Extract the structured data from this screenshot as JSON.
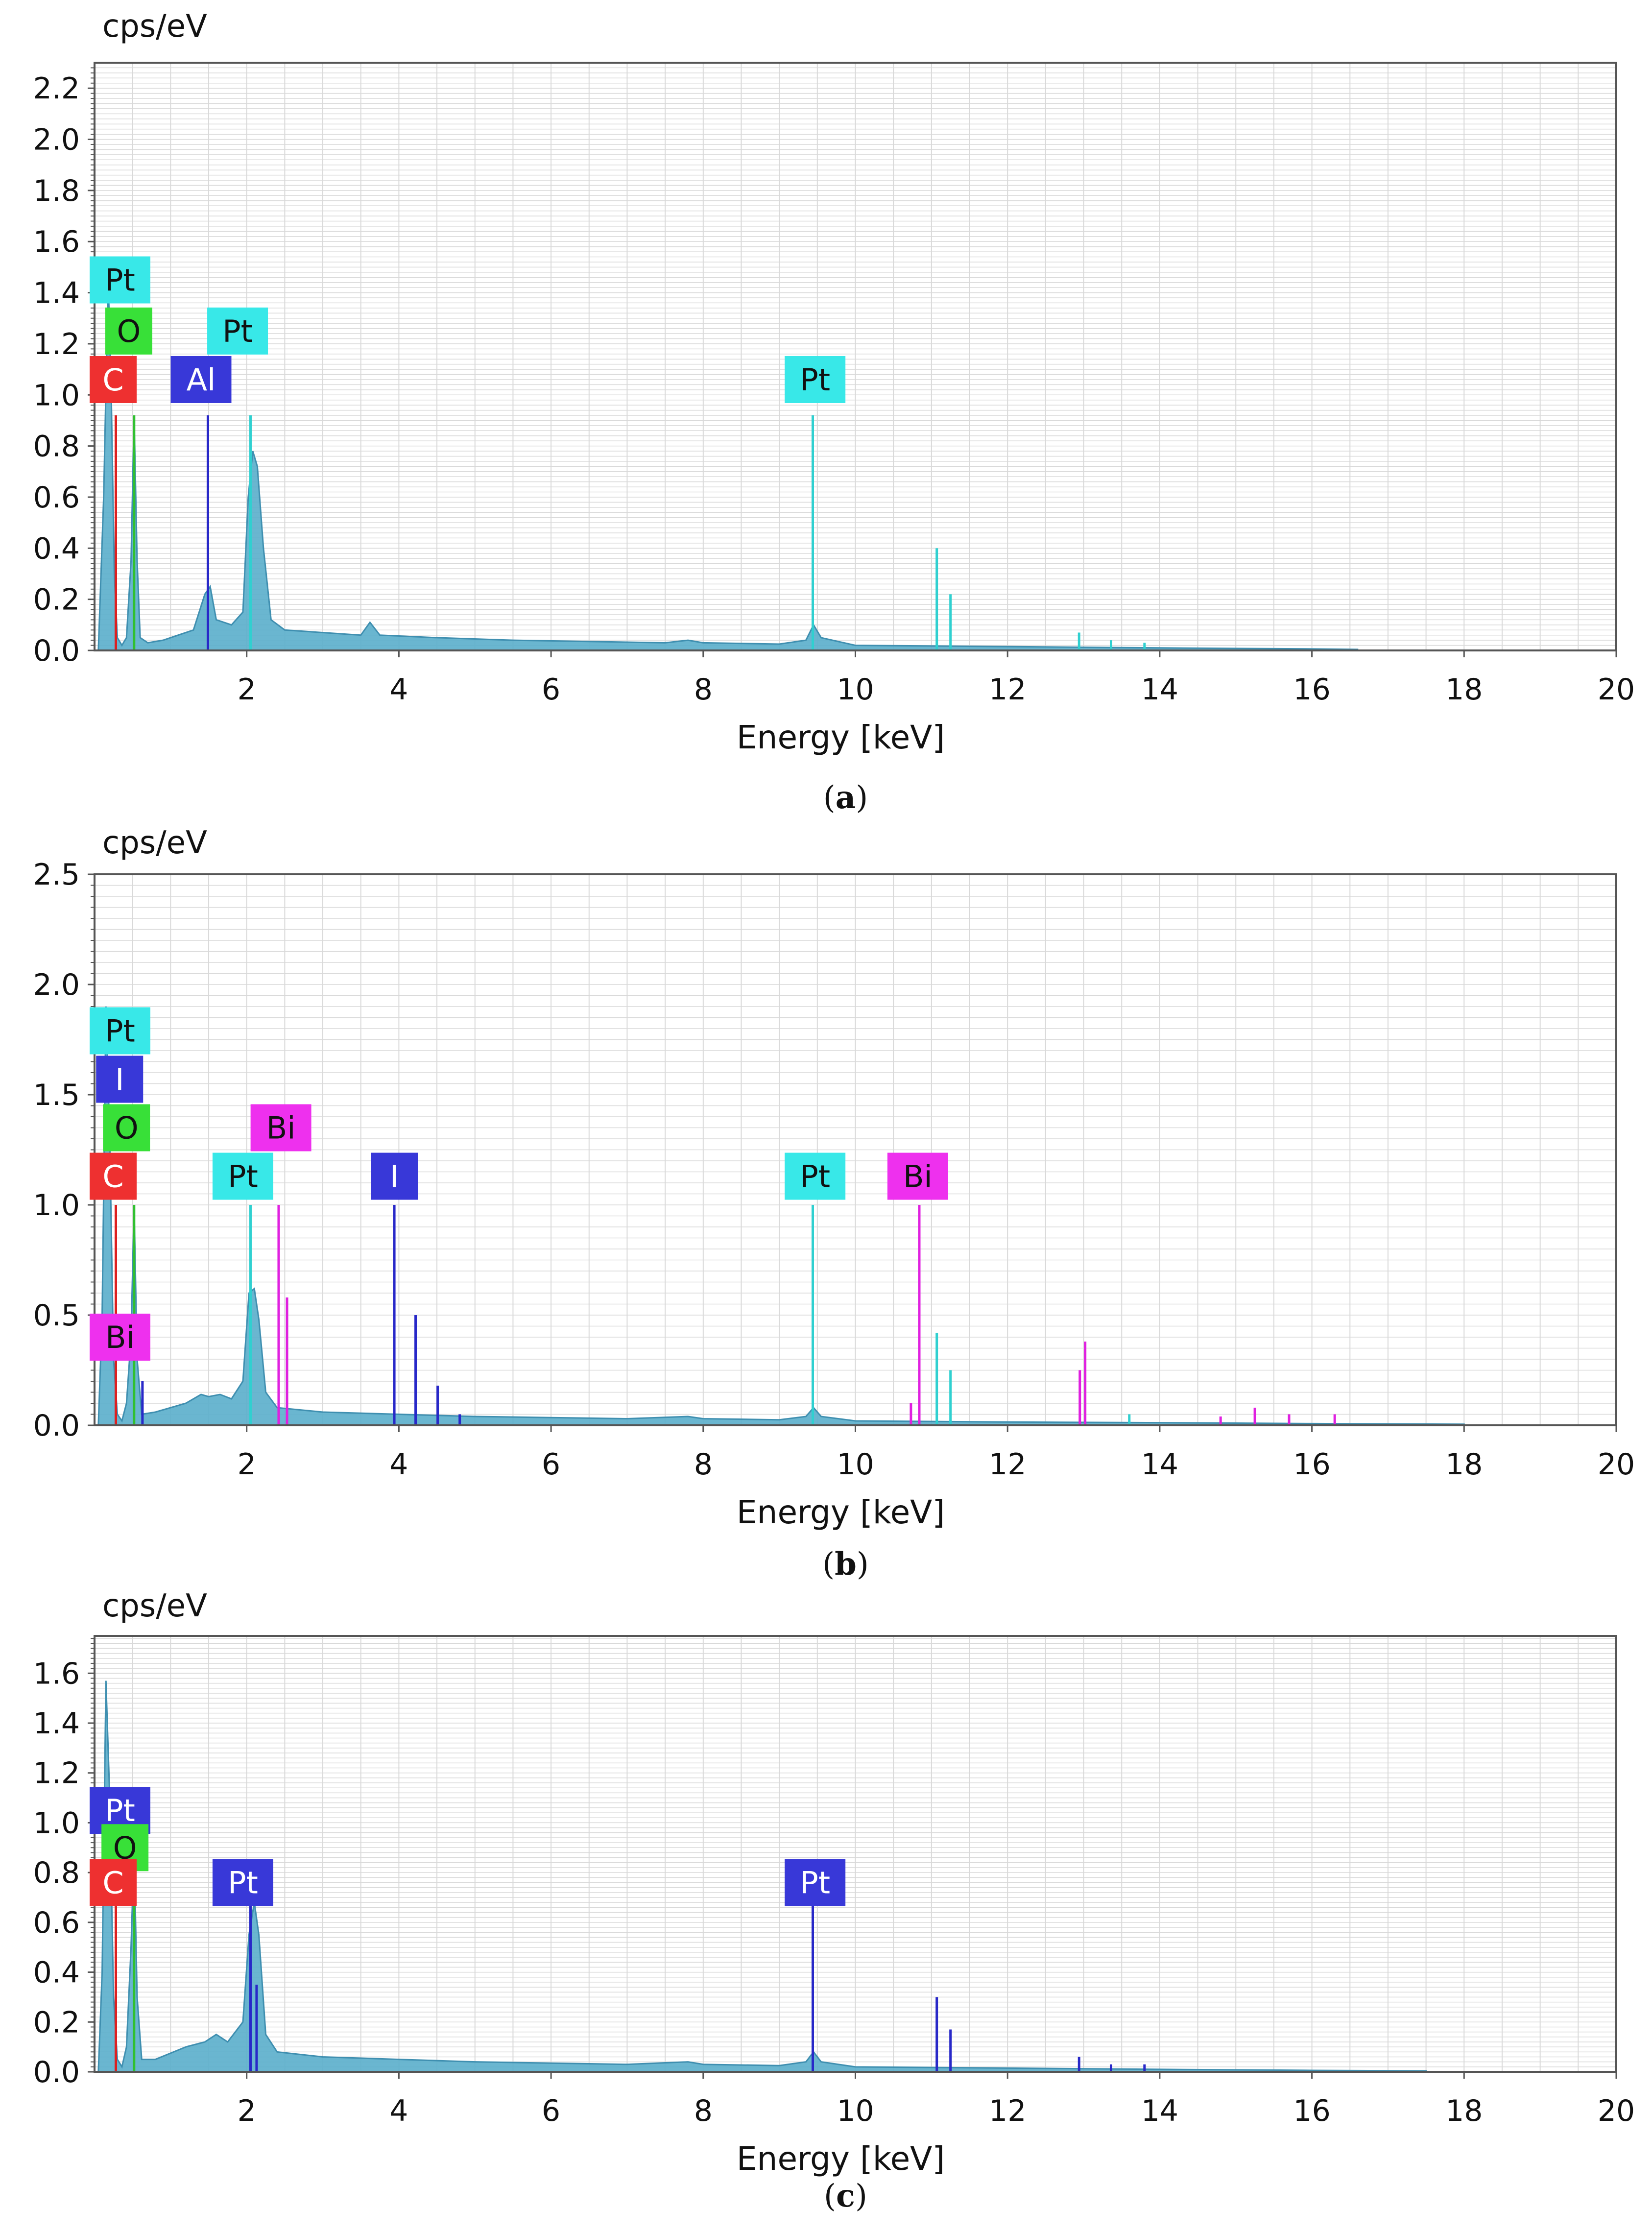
{
  "chart_data": [
    {
      "type": "line",
      "panel_caption": "a",
      "ylabel": "cps/eV",
      "xlabel": "Energy [keV]",
      "xlim": [
        0,
        20
      ],
      "ylim": [
        0,
        2.3
      ],
      "xticks": [
        2,
        4,
        6,
        8,
        10,
        12,
        14,
        16,
        18,
        20
      ],
      "yticks": [
        0.0,
        0.2,
        0.4,
        0.6,
        0.8,
        1.0,
        1.2,
        1.4,
        1.6,
        1.8,
        2.0,
        2.2
      ],
      "ytick_labels": [
        "0.0",
        "0.2",
        "0.4",
        "0.6",
        "0.8",
        "1.0",
        "1.2",
        "1.4",
        "1.6",
        "1.8",
        "2.0",
        "2.2"
      ],
      "grid": true,
      "spectrum": [
        [
          0.05,
          0.0
        ],
        [
          0.12,
          0.6
        ],
        [
          0.18,
          1.45
        ],
        [
          0.22,
          1.0
        ],
        [
          0.26,
          0.3
        ],
        [
          0.3,
          0.05
        ],
        [
          0.36,
          0.02
        ],
        [
          0.42,
          0.05
        ],
        [
          0.48,
          0.35
        ],
        [
          0.52,
          0.92
        ],
        [
          0.56,
          0.35
        ],
        [
          0.6,
          0.05
        ],
        [
          0.7,
          0.03
        ],
        [
          0.9,
          0.04
        ],
        [
          1.1,
          0.06
        ],
        [
          1.3,
          0.08
        ],
        [
          1.45,
          0.22
        ],
        [
          1.52,
          0.25
        ],
        [
          1.6,
          0.12
        ],
        [
          1.8,
          0.1
        ],
        [
          1.95,
          0.15
        ],
        [
          2.02,
          0.6
        ],
        [
          2.08,
          0.78
        ],
        [
          2.14,
          0.72
        ],
        [
          2.22,
          0.4
        ],
        [
          2.32,
          0.12
        ],
        [
          2.5,
          0.08
        ],
        [
          3.0,
          0.07
        ],
        [
          3.5,
          0.06
        ],
        [
          3.62,
          0.11
        ],
        [
          3.75,
          0.06
        ],
        [
          4.5,
          0.05
        ],
        [
          5.5,
          0.04
        ],
        [
          6.5,
          0.035
        ],
        [
          7.5,
          0.03
        ],
        [
          7.8,
          0.04
        ],
        [
          8.0,
          0.03
        ],
        [
          9.0,
          0.025
        ],
        [
          9.35,
          0.04
        ],
        [
          9.45,
          0.1
        ],
        [
          9.55,
          0.05
        ],
        [
          10.0,
          0.02
        ],
        [
          12.0,
          0.015
        ],
        [
          14.0,
          0.01
        ],
        [
          16.0,
          0.006
        ],
        [
          16.6,
          0.004
        ]
      ],
      "markers": [
        {
          "element": "Pt",
          "energy": 9.44,
          "height": 0.92,
          "color": "#30d0d0"
        },
        {
          "element": "Pt",
          "energy": 2.05,
          "height": 0.92,
          "color": "#30d0d0"
        },
        {
          "element": "Pt",
          "energy": 11.07,
          "height": 0.4,
          "color": "#30d0d0"
        },
        {
          "element": "Pt",
          "energy": 11.25,
          "height": 0.22,
          "color": "#30d0d0"
        },
        {
          "element": "Pt",
          "energy": 12.94,
          "height": 0.07,
          "color": "#30d0d0"
        },
        {
          "element": "Pt",
          "energy": 13.36,
          "height": 0.04,
          "color": "#30d0d0"
        },
        {
          "element": "Pt",
          "energy": 13.8,
          "height": 0.03,
          "color": "#30d0d0"
        },
        {
          "element": "Al",
          "energy": 1.49,
          "height": 0.92,
          "color": "#2828c8"
        },
        {
          "element": "O",
          "energy": 0.52,
          "height": 0.92,
          "color": "#30c030"
        },
        {
          "element": "C",
          "energy": 0.28,
          "height": 0.92,
          "color": "#dd2020"
        }
      ],
      "labels": [
        {
          "text": "Pt",
          "energy": 0.22,
          "y": 1.45,
          "bg": "#38e8e8",
          "fg": "#111111"
        },
        {
          "text": "O",
          "energy": 0.45,
          "y": 1.25,
          "bg": "#38e038",
          "fg": "#111111"
        },
        {
          "text": "Pt",
          "energy": 1.88,
          "y": 1.25,
          "bg": "#38e8e8",
          "fg": "#111111"
        },
        {
          "text": "C",
          "energy": 0.22,
          "y": 1.06,
          "bg": "#ee3030",
          "fg": "#ffffff"
        },
        {
          "text": "Al",
          "energy": 1.4,
          "y": 1.06,
          "bg": "#3838d8",
          "fg": "#ffffff"
        },
        {
          "text": "Pt",
          "energy": 9.47,
          "y": 1.06,
          "bg": "#38e8e8",
          "fg": "#111111"
        }
      ]
    },
    {
      "type": "line",
      "panel_caption": "b",
      "ylabel": "cps/eV",
      "xlabel": "Energy [keV]",
      "xlim": [
        0,
        20
      ],
      "ylim": [
        0,
        2.5
      ],
      "xticks": [
        2,
        4,
        6,
        8,
        10,
        12,
        14,
        16,
        18,
        20
      ],
      "yticks": [
        0.0,
        0.5,
        1.0,
        1.5,
        2.0,
        2.5
      ],
      "ytick_labels": [
        "0.0",
        "0.5",
        "1.0",
        "1.5",
        "2.0",
        "2.5"
      ],
      "grid": true,
      "spectrum": [
        [
          0.05,
          0.0
        ],
        [
          0.1,
          0.5
        ],
        [
          0.15,
          1.9
        ],
        [
          0.2,
          1.3
        ],
        [
          0.25,
          0.3
        ],
        [
          0.3,
          0.05
        ],
        [
          0.36,
          0.02
        ],
        [
          0.42,
          0.1
        ],
        [
          0.48,
          0.4
        ],
        [
          0.52,
          1.0
        ],
        [
          0.56,
          0.3
        ],
        [
          0.62,
          0.05
        ],
        [
          0.8,
          0.06
        ],
        [
          1.2,
          0.1
        ],
        [
          1.4,
          0.14
        ],
        [
          1.5,
          0.13
        ],
        [
          1.65,
          0.14
        ],
        [
          1.8,
          0.12
        ],
        [
          1.95,
          0.2
        ],
        [
          2.03,
          0.6
        ],
        [
          2.1,
          0.62
        ],
        [
          2.16,
          0.48
        ],
        [
          2.25,
          0.15
        ],
        [
          2.4,
          0.08
        ],
        [
          3.0,
          0.06
        ],
        [
          4.0,
          0.05
        ],
        [
          5.0,
          0.04
        ],
        [
          6.0,
          0.035
        ],
        [
          7.0,
          0.03
        ],
        [
          7.8,
          0.04
        ],
        [
          8.0,
          0.03
        ],
        [
          9.0,
          0.025
        ],
        [
          9.35,
          0.04
        ],
        [
          9.45,
          0.08
        ],
        [
          9.55,
          0.04
        ],
        [
          10.0,
          0.02
        ],
        [
          12.0,
          0.015
        ],
        [
          14.0,
          0.012
        ],
        [
          16.0,
          0.008
        ],
        [
          18.0,
          0.005
        ]
      ],
      "markers": [
        {
          "element": "Pt",
          "energy": 9.44,
          "height": 1.0,
          "color": "#30d0d0"
        },
        {
          "element": "Pt",
          "energy": 2.05,
          "height": 1.0,
          "color": "#30d0d0"
        },
        {
          "element": "Pt",
          "energy": 11.07,
          "height": 0.42,
          "color": "#30d0d0"
        },
        {
          "element": "Pt",
          "energy": 11.25,
          "height": 0.25,
          "color": "#30d0d0"
        },
        {
          "element": "Pt",
          "energy": 13.6,
          "height": 0.05,
          "color": "#30d0d0"
        },
        {
          "element": "Bi",
          "energy": 2.42,
          "height": 1.0,
          "color": "#e020e0"
        },
        {
          "element": "Bi",
          "energy": 2.53,
          "height": 0.58,
          "color": "#e020e0"
        },
        {
          "element": "Bi",
          "energy": 10.84,
          "height": 1.0,
          "color": "#e020e0"
        },
        {
          "element": "Bi",
          "energy": 10.73,
          "height": 0.1,
          "color": "#e020e0"
        },
        {
          "element": "Bi",
          "energy": 13.02,
          "height": 0.38,
          "color": "#e020e0"
        },
        {
          "element": "Bi",
          "energy": 12.95,
          "height": 0.25,
          "color": "#e020e0"
        },
        {
          "element": "Bi",
          "energy": 15.25,
          "height": 0.08,
          "color": "#e020e0"
        },
        {
          "element": "Bi",
          "energy": 15.7,
          "height": 0.05,
          "color": "#e020e0"
        },
        {
          "element": "Bi",
          "energy": 16.3,
          "height": 0.05,
          "color": "#e020e0"
        },
        {
          "element": "Bi",
          "energy": 14.8,
          "height": 0.04,
          "color": "#e020e0"
        },
        {
          "element": "I",
          "energy": 3.94,
          "height": 1.0,
          "color": "#2828c8"
        },
        {
          "element": "I",
          "energy": 4.22,
          "height": 0.5,
          "color": "#2828c8"
        },
        {
          "element": "I",
          "energy": 4.51,
          "height": 0.18,
          "color": "#2828c8"
        },
        {
          "element": "I",
          "energy": 4.8,
          "height": 0.05,
          "color": "#2828c8"
        },
        {
          "element": "I",
          "energy": 0.63,
          "height": 0.2,
          "color": "#2828c8"
        },
        {
          "element": "O",
          "energy": 0.52,
          "height": 1.0,
          "color": "#30c030"
        },
        {
          "element": "C",
          "energy": 0.28,
          "height": 1.0,
          "color": "#dd2020"
        }
      ],
      "labels": [
        {
          "text": "Pt",
          "energy": 0.22,
          "y": 1.79,
          "bg": "#38e8e8",
          "fg": "#111111"
        },
        {
          "text": "I",
          "energy": 0.33,
          "y": 1.57,
          "bg": "#3838d8",
          "fg": "#ffffff"
        },
        {
          "text": "O",
          "energy": 0.42,
          "y": 1.35,
          "bg": "#38e038",
          "fg": "#111111"
        },
        {
          "text": "Bi",
          "energy": 2.45,
          "y": 1.35,
          "bg": "#ee30ee",
          "fg": "#111111"
        },
        {
          "text": "C",
          "energy": 0.22,
          "y": 1.13,
          "bg": "#ee3030",
          "fg": "#ffffff"
        },
        {
          "text": "Pt",
          "energy": 1.95,
          "y": 1.13,
          "bg": "#38e8e8",
          "fg": "#111111"
        },
        {
          "text": "I",
          "energy": 3.94,
          "y": 1.13,
          "bg": "#3838d8",
          "fg": "#ffffff"
        },
        {
          "text": "Pt",
          "energy": 9.47,
          "y": 1.13,
          "bg": "#38e8e8",
          "fg": "#111111"
        },
        {
          "text": "Bi",
          "energy": 10.82,
          "y": 1.13,
          "bg": "#ee30ee",
          "fg": "#111111"
        },
        {
          "text": "Bi",
          "energy": 0.24,
          "y": 0.4,
          "bg": "#ee30ee",
          "fg": "#111111"
        }
      ]
    },
    {
      "type": "line",
      "panel_caption": "c",
      "ylabel": "cps/eV",
      "xlabel": "Energy [keV]",
      "xlim": [
        0,
        20
      ],
      "ylim": [
        0,
        1.75
      ],
      "xticks": [
        2,
        4,
        6,
        8,
        10,
        12,
        14,
        16,
        18,
        20
      ],
      "yticks": [
        0.0,
        0.2,
        0.4,
        0.6,
        0.8,
        1.0,
        1.2,
        1.4,
        1.6
      ],
      "ytick_labels": [
        "0.0",
        "0.2",
        "0.4",
        "0.6",
        "0.8",
        "1.0",
        "1.2",
        "1.4",
        "1.6"
      ],
      "grid": true,
      "spectrum": [
        [
          0.05,
          0.0
        ],
        [
          0.1,
          0.4
        ],
        [
          0.15,
          1.57
        ],
        [
          0.2,
          1.1
        ],
        [
          0.25,
          0.3
        ],
        [
          0.3,
          0.05
        ],
        [
          0.36,
          0.02
        ],
        [
          0.42,
          0.1
        ],
        [
          0.48,
          0.5
        ],
        [
          0.52,
          0.9
        ],
        [
          0.56,
          0.3
        ],
        [
          0.62,
          0.05
        ],
        [
          0.8,
          0.05
        ],
        [
          1.2,
          0.1
        ],
        [
          1.45,
          0.12
        ],
        [
          1.6,
          0.15
        ],
        [
          1.75,
          0.12
        ],
        [
          1.95,
          0.2
        ],
        [
          2.03,
          0.55
        ],
        [
          2.1,
          0.68
        ],
        [
          2.16,
          0.55
        ],
        [
          2.25,
          0.15
        ],
        [
          2.4,
          0.08
        ],
        [
          3.0,
          0.06
        ],
        [
          4.0,
          0.05
        ],
        [
          5.0,
          0.04
        ],
        [
          6.0,
          0.035
        ],
        [
          7.0,
          0.03
        ],
        [
          7.8,
          0.04
        ],
        [
          8.0,
          0.03
        ],
        [
          9.0,
          0.025
        ],
        [
          9.35,
          0.04
        ],
        [
          9.45,
          0.08
        ],
        [
          9.55,
          0.04
        ],
        [
          10.0,
          0.02
        ],
        [
          12.0,
          0.015
        ],
        [
          14.0,
          0.01
        ],
        [
          16.0,
          0.006
        ],
        [
          17.5,
          0.004
        ]
      ],
      "markers": [
        {
          "element": "Pt",
          "energy": 9.44,
          "height": 0.7,
          "color": "#2828c8"
        },
        {
          "element": "Pt",
          "energy": 2.05,
          "height": 0.7,
          "color": "#2828c8"
        },
        {
          "element": "Pt",
          "energy": 2.13,
          "height": 0.35,
          "color": "#2828c8"
        },
        {
          "element": "Pt",
          "energy": 11.07,
          "height": 0.3,
          "color": "#2828c8"
        },
        {
          "element": "Pt",
          "energy": 11.25,
          "height": 0.17,
          "color": "#2828c8"
        },
        {
          "element": "Pt",
          "energy": 12.94,
          "height": 0.06,
          "color": "#2828c8"
        },
        {
          "element": "Pt",
          "energy": 13.36,
          "height": 0.03,
          "color": "#2828c8"
        },
        {
          "element": "Pt",
          "energy": 13.8,
          "height": 0.03,
          "color": "#2828c8"
        },
        {
          "element": "O",
          "energy": 0.52,
          "height": 0.7,
          "color": "#30c030"
        },
        {
          "element": "C",
          "energy": 0.28,
          "height": 0.7,
          "color": "#dd2020"
        }
      ],
      "labels": [
        {
          "text": "Pt",
          "energy": 0.18,
          "y": 1.05,
          "bg": "#3838d8",
          "fg": "#ffffff"
        },
        {
          "text": "O",
          "energy": 0.4,
          "y": 0.9,
          "bg": "#38e038",
          "fg": "#111111"
        },
        {
          "text": "C",
          "energy": 0.2,
          "y": 0.76,
          "bg": "#ee3030",
          "fg": "#ffffff"
        },
        {
          "text": "Pt",
          "energy": 1.95,
          "y": 0.76,
          "bg": "#3838d8",
          "fg": "#ffffff"
        },
        {
          "text": "Pt",
          "energy": 9.47,
          "y": 0.76,
          "bg": "#3838d8",
          "fg": "#ffffff"
        }
      ]
    }
  ],
  "colors": {
    "spectrum_fill": "#5aaecb",
    "spectrum_stroke": "#3f8fb0",
    "grid": "#d9d9d9",
    "axis": "#555555"
  }
}
